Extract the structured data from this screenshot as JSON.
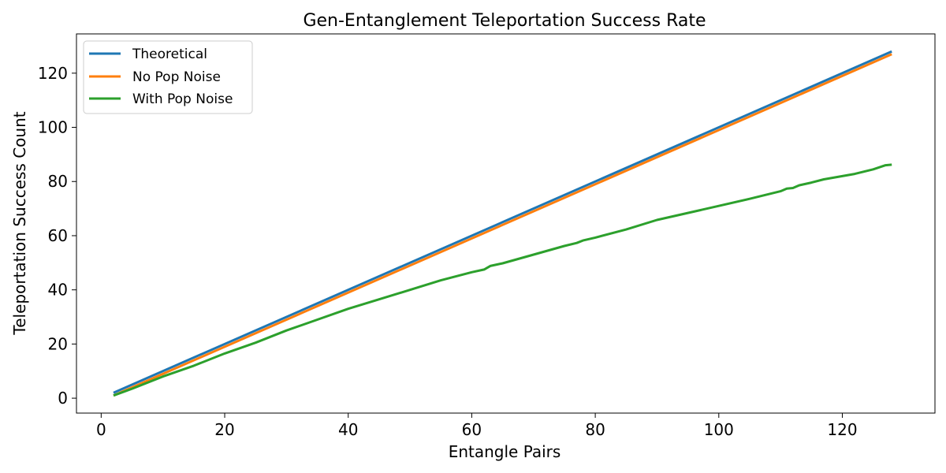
{
  "chart_data": {
    "type": "line",
    "title": "Gen-Entanglement Teleportation Success Rate",
    "xlabel": "Entangle Pairs",
    "ylabel": "Teleportation Success Count",
    "xlim": [
      -4,
      135
    ],
    "ylim": [
      -5.5,
      134.5
    ],
    "xticks": [
      0,
      20,
      40,
      60,
      80,
      100,
      120
    ],
    "yticks": [
      0,
      20,
      40,
      60,
      80,
      100,
      120
    ],
    "grid": false,
    "legend_position": "top-left",
    "series": [
      {
        "name": "Theoretical",
        "color": "#1f77b4",
        "x": [
          2,
          128
        ],
        "y": [
          2,
          128
        ]
      },
      {
        "name": "No Pop Noise",
        "color": "#ff7f0e",
        "x": [
          2,
          128
        ],
        "y": [
          1,
          127
        ]
      },
      {
        "name": "With Pop Noise",
        "color": "#2ca02c",
        "x": [
          2,
          5,
          10,
          15,
          20,
          25,
          30,
          35,
          40,
          45,
          50,
          55,
          60,
          62,
          63,
          65,
          70,
          75,
          77,
          78,
          80,
          85,
          90,
          95,
          100,
          105,
          110,
          111,
          112,
          113,
          115,
          117,
          120,
          122,
          125,
          127,
          128
        ],
        "y": [
          1,
          3.5,
          8,
          12,
          16.5,
          20.5,
          25,
          29,
          33,
          36.5,
          40,
          43.5,
          46.5,
          47.5,
          48.8,
          49.8,
          53,
          56.2,
          57.3,
          58.2,
          59.3,
          62.3,
          65.8,
          68.4,
          71,
          73.6,
          76.4,
          77.4,
          77.6,
          78.6,
          79.6,
          80.8,
          82,
          82.8,
          84.5,
          86,
          86.2
        ]
      }
    ]
  }
}
